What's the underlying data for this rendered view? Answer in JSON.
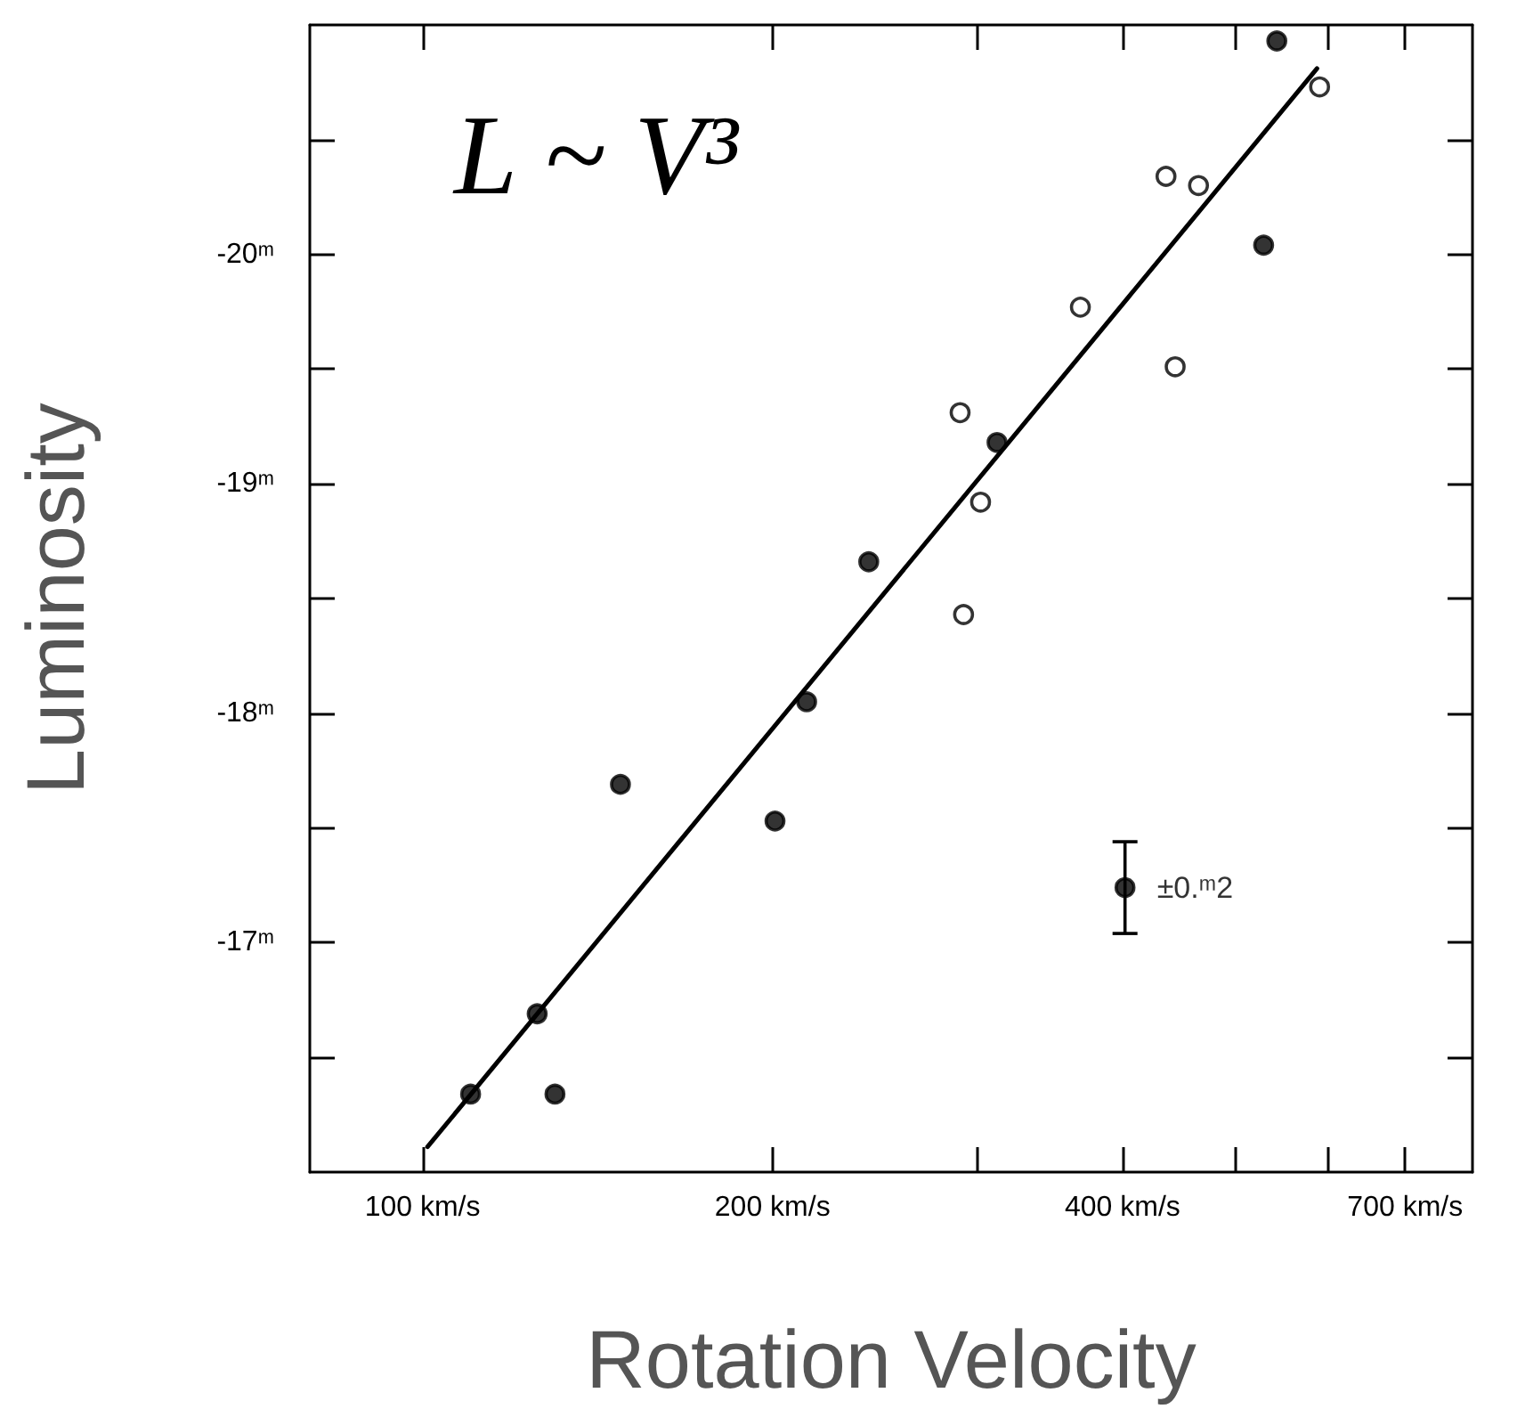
{
  "chart_data": {
    "type": "scatter",
    "xlabel": "Rotation Velocity",
    "ylabel": "Luminosity",
    "log": "x",
    "grid": false,
    "marker": "circle",
    "xlim": [
      80,
      800
    ],
    "xticks": [
      {
        "value": 100,
        "label": "100 km/s"
      },
      {
        "value": 200,
        "label": "200 km/s"
      },
      {
        "value": 300,
        "label": null
      },
      {
        "value": 400,
        "label": "400 km/s"
      },
      {
        "value": 500,
        "label": null
      },
      {
        "value": 600,
        "label": null
      },
      {
        "value": 700,
        "label": "700 km/s"
      }
    ],
    "ylim": [
      -16,
      -21
    ],
    "yticks": [
      {
        "value": -16.5,
        "label": null
      },
      {
        "value": -17,
        "label": "-17ᵐ"
      },
      {
        "value": -17.5,
        "label": null
      },
      {
        "value": -18,
        "label": "-18ᵐ"
      },
      {
        "value": -18.5,
        "label": null
      },
      {
        "value": -19,
        "label": "-19ᵐ"
      },
      {
        "value": -19.5,
        "label": null
      },
      {
        "value": -20,
        "label": "-20ᵐ"
      },
      {
        "value": -20.5,
        "label": null
      }
    ],
    "annotations": [
      "L ~ V³",
      {
        "text": "±0.ᵐ2",
        "x": 402,
        "y": -17.24
      }
    ],
    "series": [
      {
        "color": "#000000",
        "x": [
          110,
          125.5,
          130,
          148,
          201,
          214,
          242,
          312,
          529,
          543
        ],
        "values": [
          -16.34,
          -16.69,
          -16.34,
          -17.69,
          -17.53,
          -18.05,
          -18.66,
          -19.18,
          -20.04,
          -20.93
        ]
      },
      {
        "color": "#ffffff",
        "x": [
          290,
          302,
          292,
          368,
          436,
          465,
          444,
          591
        ],
        "values": [
          -19.31,
          -18.92,
          -18.43,
          -19.77,
          -20.34,
          -20.3,
          -19.51,
          -20.73
        ]
      },
      {
        "type": "line",
        "color": "#000000",
        "marker": "none",
        "line_style": "solid",
        "x": [
          101,
          588
        ],
        "values": [
          -16.11,
          -20.81
        ]
      },
      {
        "color": "#000000",
        "x": [
          402
        ],
        "values": [
          -17.24
        ],
        "errors": [
          0.2
        ]
      }
    ]
  }
}
